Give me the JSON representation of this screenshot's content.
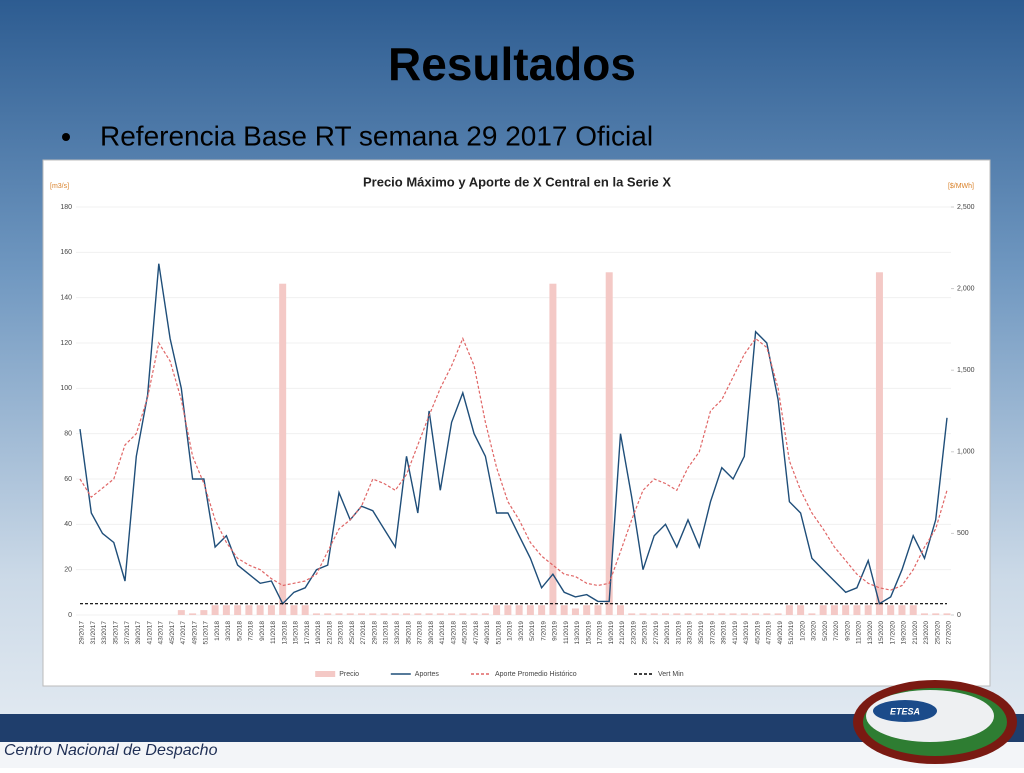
{
  "slide": {
    "title": "Resultados",
    "bullet": "Referencia Base RT semana 29 2017 Oficial"
  },
  "chart_data": {
    "type": "combo",
    "title": "Precio Máximo y Aporte de X Central en la Serie X",
    "ylabel": "[m3/s]",
    "y2label": "[$/MWh]",
    "categories": [
      "29/2017",
      "31/2017",
      "33/2017",
      "35/2017",
      "37/2017",
      "39/2017",
      "41/2017",
      "43/2017",
      "45/2017",
      "47/2017",
      "49/2017",
      "51/2017",
      "1/2018",
      "3/2018",
      "5/2018",
      "7/2018",
      "9/2018",
      "11/2018",
      "13/2018",
      "15/2018",
      "17/2018",
      "19/2018",
      "21/2018",
      "23/2018",
      "25/2018",
      "27/2018",
      "29/2018",
      "31/2018",
      "33/2018",
      "35/2018",
      "37/2018",
      "39/2018",
      "41/2018",
      "43/2018",
      "45/2018",
      "47/2018",
      "49/2018",
      "51/2018",
      "1/2019",
      "3/2019",
      "5/2019",
      "7/2019",
      "9/2019",
      "11/2019",
      "13/2019",
      "15/2019",
      "17/2019",
      "19/2019",
      "21/2019",
      "23/2019",
      "25/2019",
      "27/2019",
      "29/2019",
      "31/2019",
      "33/2019",
      "35/2019",
      "37/2019",
      "39/2019",
      "41/2019",
      "43/2019",
      "45/2019",
      "47/2019",
      "49/2019",
      "51/2019",
      "1/2020",
      "3/2020",
      "5/2020",
      "7/2020",
      "9/2020",
      "11/2020",
      "13/2020",
      "15/2020",
      "17/2020",
      "19/2020",
      "21/2020",
      "23/2020",
      "25/2020",
      "27/2020"
    ],
    "series": [
      {
        "name": "Precio",
        "type": "bar",
        "axis": "y2",
        "color": "#f4c9c6",
        "values": [
          0,
          0,
          0,
          0,
          0,
          0,
          0,
          0,
          0,
          30,
          10,
          30,
          60,
          60,
          60,
          60,
          60,
          60,
          2030,
          60,
          60,
          10,
          10,
          10,
          10,
          10,
          10,
          10,
          10,
          10,
          10,
          10,
          10,
          10,
          10,
          10,
          10,
          60,
          60,
          60,
          60,
          60,
          2030,
          60,
          40,
          60,
          60,
          2100,
          60,
          10,
          10,
          10,
          10,
          10,
          10,
          10,
          10,
          10,
          10,
          10,
          10,
          10,
          10,
          60,
          60,
          10,
          60,
          60,
          60,
          60,
          60,
          2100,
          60,
          60,
          60,
          10,
          10,
          10
        ]
      },
      {
        "name": "Aportes",
        "type": "line",
        "color": "#1f4e79",
        "dash": false,
        "values": [
          82,
          45,
          36,
          32,
          15,
          70,
          97,
          155,
          122,
          100,
          60,
          60,
          30,
          35,
          22,
          18,
          14,
          15,
          5,
          10,
          12,
          20,
          22,
          54,
          42,
          48,
          46,
          38,
          30,
          70,
          45,
          90,
          55,
          85,
          98,
          80,
          70,
          45,
          45,
          35,
          25,
          12,
          18,
          10,
          8,
          9,
          6,
          6,
          80,
          52,
          20,
          35,
          40,
          30,
          42,
          30,
          50,
          65,
          60,
          70,
          125,
          120,
          95,
          50,
          45,
          25,
          20,
          15,
          10,
          12,
          24,
          5,
          8,
          20,
          35,
          25,
          42,
          87
        ]
      },
      {
        "name": "Aporte Promedio Histórico",
        "type": "line",
        "color": "#e06666",
        "dash": true,
        "values": [
          60,
          52,
          56,
          60,
          75,
          80,
          96,
          120,
          112,
          95,
          70,
          58,
          42,
          32,
          25,
          22,
          20,
          16,
          13,
          14,
          15,
          18,
          28,
          38,
          42,
          48,
          60,
          58,
          55,
          62,
          75,
          88,
          100,
          110,
          122,
          110,
          85,
          65,
          50,
          42,
          32,
          26,
          22,
          18,
          17,
          14,
          13,
          14,
          28,
          42,
          55,
          60,
          58,
          55,
          65,
          72,
          90,
          95,
          105,
          115,
          122,
          118,
          100,
          68,
          55,
          45,
          38,
          30,
          24,
          18,
          14,
          12,
          11,
          13,
          20,
          30,
          38,
          55
        ]
      },
      {
        "name": "Vert Min",
        "type": "line",
        "color": "#000000",
        "dash": true,
        "values": [
          5,
          5,
          5,
          5,
          5,
          5,
          5,
          5,
          5,
          5,
          5,
          5,
          5,
          5,
          5,
          5,
          5,
          5,
          5,
          5,
          5,
          5,
          5,
          5,
          5,
          5,
          5,
          5,
          5,
          5,
          5,
          5,
          5,
          5,
          5,
          5,
          5,
          5,
          5,
          5,
          5,
          5,
          5,
          5,
          5,
          5,
          5,
          5,
          5,
          5,
          5,
          5,
          5,
          5,
          5,
          5,
          5,
          5,
          5,
          5,
          5,
          5,
          5,
          5,
          5,
          5,
          5,
          5,
          5,
          5,
          5,
          5,
          5,
          5,
          5,
          5,
          5,
          5
        ]
      }
    ],
    "ylim": [
      0,
      180
    ],
    "yticks": [
      0,
      20,
      40,
      60,
      80,
      100,
      120,
      140,
      160,
      180
    ],
    "y2lim": [
      0,
      2500
    ],
    "y2ticks": [
      0,
      500,
      {
        "value": 1000,
        "label": "1,000"
      },
      {
        "value": 1500,
        "label": "1,500"
      },
      {
        "value": 2000,
        "label": "2,000"
      },
      {
        "value": 2500,
        "label": "2,500"
      }
    ],
    "grid": true,
    "legend": "bottom"
  },
  "footer": {
    "org": "Centro Nacional de Despacho",
    "logo": "ETESA"
  }
}
